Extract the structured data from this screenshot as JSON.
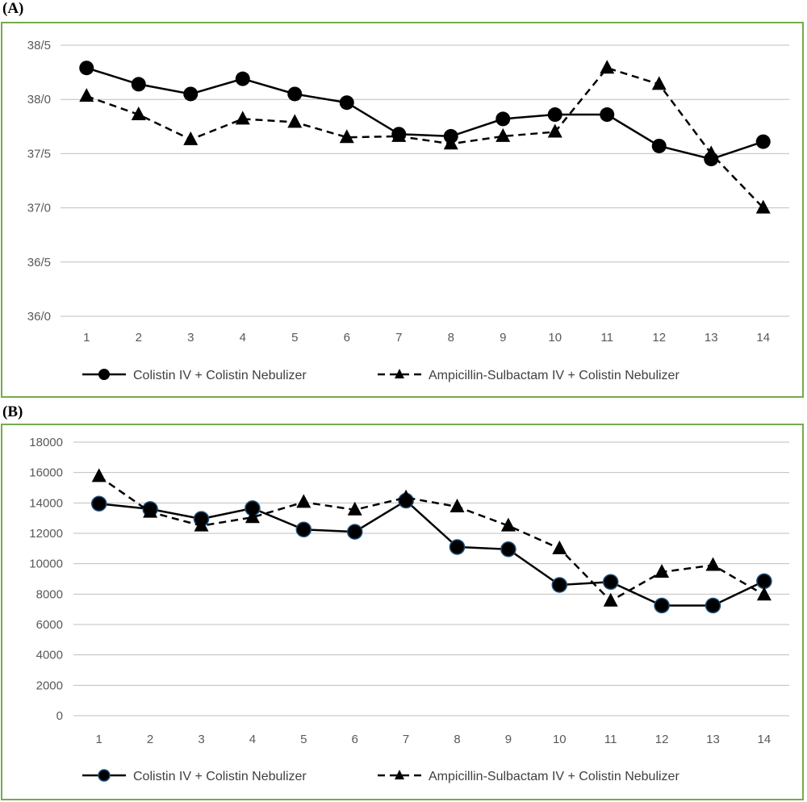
{
  "panels": {
    "a": {
      "label": "(A)"
    },
    "b": {
      "label": "(B)"
    }
  },
  "chart_data": [
    {
      "type": "line",
      "panel": "(A)",
      "title": "",
      "xlabel": "",
      "ylabel": "",
      "categories": [
        "1",
        "2",
        "3",
        "4",
        "5",
        "6",
        "7",
        "8",
        "9",
        "10",
        "11",
        "12",
        "13",
        "14"
      ],
      "ylim": [
        36.0,
        38.5
      ],
      "y_ticks": [
        "36/0",
        "36/5",
        "37/0",
        "37/5",
        "38/0",
        "38/5"
      ],
      "y_tick_values": [
        36.0,
        36.5,
        37.0,
        37.5,
        38.0,
        38.5
      ],
      "grid": true,
      "legend_position": "bottom",
      "series": [
        {
          "name": "Colistin IV + Colistin Nebulizer",
          "style": "solid",
          "marker": "circle",
          "values": [
            38.29,
            38.14,
            38.05,
            38.19,
            38.05,
            37.97,
            37.68,
            37.66,
            37.82,
            37.86,
            37.86,
            37.57,
            37.45,
            37.61
          ]
        },
        {
          "name": "Ampicillin-Sulbactam IV + Colistin Nebulizer",
          "style": "dashed",
          "marker": "triangle",
          "values": [
            38.03,
            37.86,
            37.63,
            37.82,
            37.79,
            37.65,
            37.66,
            37.59,
            37.66,
            37.7,
            38.29,
            38.14,
            37.5,
            37.0
          ]
        }
      ],
      "colors": {
        "lines": "#000000",
        "grid": "#bfbfbf",
        "frame": "#77ab4a"
      }
    },
    {
      "type": "line",
      "panel": "(B)",
      "title": "",
      "xlabel": "",
      "ylabel": "",
      "categories": [
        "1",
        "2",
        "3",
        "4",
        "5",
        "6",
        "7",
        "8",
        "9",
        "10",
        "11",
        "12",
        "13",
        "14"
      ],
      "ylim": [
        0,
        18000
      ],
      "y_ticks": [
        "0",
        "2000",
        "4000",
        "6000",
        "8000",
        "10000",
        "12000",
        "14000",
        "16000",
        "18000"
      ],
      "y_tick_values": [
        0,
        2000,
        4000,
        6000,
        8000,
        10000,
        12000,
        14000,
        16000,
        18000
      ],
      "grid": true,
      "legend_position": "bottom",
      "series": [
        {
          "name": "Colistin IV + Colistin Nebulizer",
          "style": "solid",
          "marker": "circle",
          "values": [
            13950,
            13600,
            12950,
            13650,
            12250,
            12100,
            14150,
            11100,
            10950,
            8600,
            8800,
            7250,
            7250,
            8850
          ]
        },
        {
          "name": "Ampicillin-Sulbactam IV + Colistin Nebulizer",
          "style": "dashed",
          "marker": "triangle",
          "values": [
            15750,
            13400,
            12500,
            13050,
            14050,
            13550,
            14350,
            13750,
            12500,
            11000,
            7550,
            9450,
            9900,
            7950
          ]
        }
      ],
      "colors": {
        "lines": "#000000",
        "grid": "#bfbfbf",
        "frame": "#77ab4a",
        "marker_edge": "#1f4e79"
      }
    }
  ]
}
